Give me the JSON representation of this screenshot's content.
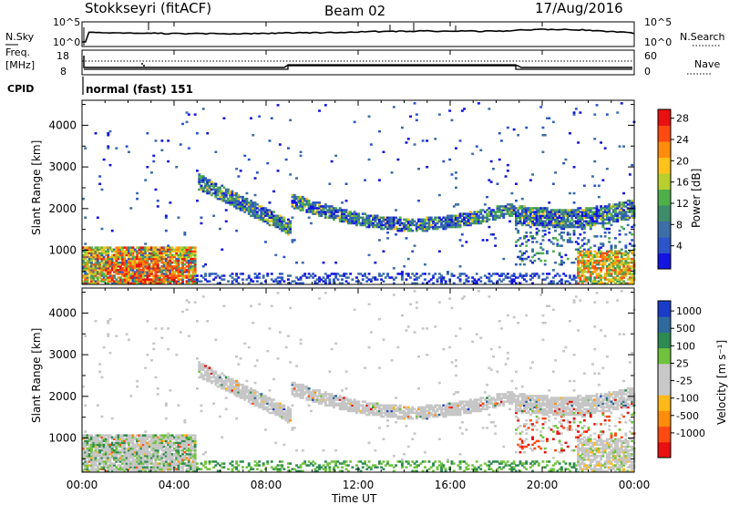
{
  "header": {
    "station": "Stokkseyri (fitACF)",
    "beam": "Beam 02",
    "date": "17/Aug/2016"
  },
  "status_panel": {
    "nsky_label": "N.Sky",
    "nsky_ticks": [
      "10^5",
      "10^0"
    ],
    "nsearch_label": "N.Search",
    "nsearch_ticks": [
      "10^5",
      "10^0"
    ],
    "freq_label_1": "Freq.",
    "freq_label_2": "[MHz]",
    "freq_ticks": [
      "18",
      "8"
    ],
    "nave_label": "Nave",
    "nave_ticks": [
      "60",
      "0"
    ],
    "cpid_label": "CPID",
    "cpid_value": "normal (fast) 151"
  },
  "chart_data": [
    {
      "type": "heatmap",
      "name": "power",
      "ylabel": "Slant Range [km]",
      "y_ticks": [
        "1000",
        "2000",
        "3000",
        "4000"
      ],
      "ylim": [
        180,
        4600
      ],
      "xlim": [
        0,
        24
      ],
      "colorbar_label": "Power [dB]",
      "colorbar_ticks": [
        "4",
        "8",
        "12",
        "16",
        "20",
        "24",
        "28"
      ],
      "colorbar_colors": [
        "#1414e0",
        "#2b55c8",
        "#3c6ea8",
        "#3d8c6a",
        "#4fb04a",
        "#b8cf2e",
        "#ffc21a",
        "#ff8c0a",
        "#ff4a12",
        "#e81010"
      ],
      "echo_regions": [
        {
          "t_start": 0.0,
          "t_end": 4.9,
          "r_start": 200,
          "r_end": 1050,
          "level": "high"
        },
        {
          "t_start": 5.0,
          "t_end": 9.0,
          "r_start": 1300,
          "r_end": 2700,
          "level": "low"
        },
        {
          "t_start": 9.0,
          "t_end": 18.8,
          "r_start": 1450,
          "r_end": 2400,
          "level": "low"
        },
        {
          "t_start": 18.8,
          "t_end": 24.0,
          "r_start": 300,
          "r_end": 2100,
          "level": "mixed"
        }
      ]
    },
    {
      "type": "heatmap",
      "name": "velocity",
      "ylabel": "Slant Range [km]",
      "y_ticks": [
        "1000",
        "2000",
        "3000",
        "4000"
      ],
      "ylim": [
        180,
        4600
      ],
      "xlim": [
        0,
        24
      ],
      "colorbar_label": "Velocity [m s⁻¹]",
      "colorbar_ticks": [
        "1000",
        "500",
        "100",
        "25",
        "-25",
        "-100",
        "-500",
        "-1000"
      ],
      "colorbar_colors": [
        "#1a3cc8",
        "#2f6a9e",
        "#2d8a52",
        "#6fc23c",
        "#c8c8c8",
        "#c8c8c8",
        "#ffb81a",
        "#ff8c0a",
        "#ff4a12",
        "#e81010"
      ],
      "ground_scatter_color": "#c6c6c6"
    }
  ],
  "x_ticks": [
    "00:00",
    "04:00",
    "08:00",
    "12:00",
    "16:00",
    "20:00",
    "00:00"
  ],
  "xlabel": "Time UT"
}
